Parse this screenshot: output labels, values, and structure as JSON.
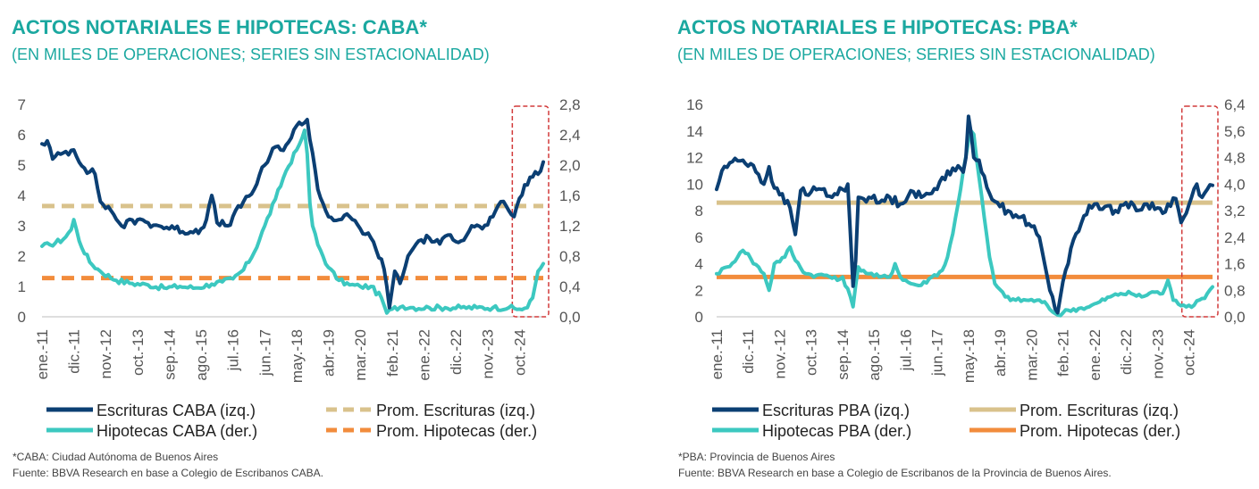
{
  "chart_data": [
    {
      "type": "line",
      "title": "ACTOS NOTARIALES E HIPOTECAS: CABA*",
      "subtitle": "(EN MILES DE OPERACIONES; SERIES SIN ESTACIONALIDAD)",
      "left_axis": {
        "min": 0,
        "max": 7,
        "step": 1,
        "ticks": [
          "0",
          "1",
          "2",
          "3",
          "4",
          "5",
          "6",
          "7"
        ]
      },
      "right_axis": {
        "min": 0,
        "max": 2.8,
        "step": 0.4,
        "ticks": [
          "0,0",
          "0,4",
          "0,8",
          "1,2",
          "1,6",
          "2,0",
          "2,4",
          "2,8"
        ]
      },
      "x_labels": [
        "ene.-11",
        "dic.-11",
        "nov.-12",
        "oct.-13",
        "sep.-14",
        "ago.-15",
        "jul.-16",
        "jun.-17",
        "may.-18",
        "abr.-19",
        "mar.-20",
        "feb.-21",
        "ene.-22",
        "dic.-22",
        "nov.-23",
        "oct.-24"
      ],
      "series": [
        {
          "name": "Escrituras CABA (izq.)",
          "axis": "left",
          "color": "#0B3F73",
          "style": "solid",
          "keyframes": [
            [
              0,
              5.7
            ],
            [
              2,
              5.8
            ],
            [
              4,
              5.2
            ],
            [
              8,
              5.4
            ],
            [
              12,
              5.5
            ],
            [
              16,
              4.9
            ],
            [
              20,
              4.7
            ],
            [
              22,
              3.8
            ],
            [
              26,
              3.5
            ],
            [
              30,
              3.0
            ],
            [
              36,
              3.2
            ],
            [
              40,
              3.1
            ],
            [
              44,
              3.0
            ],
            [
              50,
              2.9
            ],
            [
              56,
              2.8
            ],
            [
              60,
              2.9
            ],
            [
              62,
              3.2
            ],
            [
              64,
              4.0
            ],
            [
              66,
              3.1
            ],
            [
              70,
              3.0
            ],
            [
              76,
              3.8
            ],
            [
              80,
              4.2
            ],
            [
              84,
              5.0
            ],
            [
              88,
              5.6
            ],
            [
              90,
              5.5
            ],
            [
              94,
              5.9
            ],
            [
              96,
              6.3
            ],
            [
              99,
              6.4
            ],
            [
              100,
              6.5
            ],
            [
              102,
              5.4
            ],
            [
              104,
              4.2
            ],
            [
              108,
              3.3
            ],
            [
              112,
              3.2
            ],
            [
              116,
              3.3
            ],
            [
              120,
              2.9
            ],
            [
              124,
              2.6
            ],
            [
              126,
              2.2
            ],
            [
              128,
              1.9
            ],
            [
              130,
              1.0
            ],
            [
              131,
              0.3
            ],
            [
              132,
              0.9
            ],
            [
              133,
              1.5
            ],
            [
              135,
              1.1
            ],
            [
              138,
              2.0
            ],
            [
              142,
              2.5
            ],
            [
              146,
              2.6
            ],
            [
              150,
              2.4
            ],
            [
              154,
              2.7
            ],
            [
              158,
              2.5
            ],
            [
              162,
              3.0
            ],
            [
              166,
              2.9
            ],
            [
              170,
              3.3
            ],
            [
              174,
              3.8
            ],
            [
              176,
              3.5
            ],
            [
              178,
              3.3
            ],
            [
              180,
              3.9
            ],
            [
              184,
              4.6
            ],
            [
              187,
              4.7
            ],
            [
              189,
              5.1
            ]
          ],
          "jitter": 0.13
        },
        {
          "name": "Hipotecas CABA (der.)",
          "axis": "right",
          "color": "#3CC8C0",
          "style": "solid",
          "keyframes": [
            [
              0,
              0.93
            ],
            [
              3,
              0.95
            ],
            [
              8,
              1.02
            ],
            [
              11,
              1.15
            ],
            [
              12,
              1.28
            ],
            [
              14,
              1.0
            ],
            [
              18,
              0.72
            ],
            [
              22,
              0.6
            ],
            [
              28,
              0.48
            ],
            [
              34,
              0.44
            ],
            [
              40,
              0.42
            ],
            [
              46,
              0.38
            ],
            [
              52,
              0.4
            ],
            [
              58,
              0.38
            ],
            [
              64,
              0.43
            ],
            [
              68,
              0.46
            ],
            [
              72,
              0.5
            ],
            [
              76,
              0.62
            ],
            [
              80,
              0.85
            ],
            [
              84,
              1.2
            ],
            [
              88,
              1.55
            ],
            [
              92,
              1.92
            ],
            [
              96,
              2.2
            ],
            [
              98,
              2.35
            ],
            [
              99,
              2.46
            ],
            [
              100,
              2.15
            ],
            [
              101,
              1.5
            ],
            [
              102,
              1.2
            ],
            [
              104,
              0.95
            ],
            [
              108,
              0.65
            ],
            [
              112,
              0.48
            ],
            [
              116,
              0.42
            ],
            [
              120,
              0.4
            ],
            [
              124,
              0.4
            ],
            [
              128,
              0.25
            ],
            [
              130,
              0.05
            ],
            [
              132,
              0.1
            ],
            [
              136,
              0.14
            ],
            [
              140,
              0.12
            ],
            [
              146,
              0.12
            ],
            [
              152,
              0.12
            ],
            [
              158,
              0.12
            ],
            [
              164,
              0.12
            ],
            [
              170,
              0.12
            ],
            [
              176,
              0.12
            ],
            [
              180,
              0.1
            ],
            [
              183,
              0.12
            ],
            [
              185,
              0.25
            ],
            [
              187,
              0.6
            ],
            [
              189,
              0.7
            ]
          ],
          "jitter": 0.035
        },
        {
          "name": "Prom. Escrituras (izq.)",
          "axis": "left",
          "color": "#D9C28C",
          "style": "dashed",
          "value": 3.65
        },
        {
          "name": "Prom. Hipotecas (der.)",
          "axis": "right",
          "color": "#F28C3C",
          "style": "dashed",
          "value": 0.51
        }
      ],
      "footnotes": [
        "*CABA: Ciudad Autónoma de Buenos Aires",
        "Fuente: BBVA Research en base a Colegio de Escribanos CABA."
      ],
      "grid": false,
      "highlight": "dashed red box over the latest year"
    },
    {
      "type": "line",
      "title": "ACTOS NOTARIALES E HIPOTECAS: PBA*",
      "subtitle": "(EN MILES DE OPERACIONES; SERIES SIN ESTACIONALIDAD)",
      "left_axis": {
        "min": 0,
        "max": 16,
        "step": 2,
        "ticks": [
          "0",
          "2",
          "4",
          "6",
          "8",
          "10",
          "12",
          "14",
          "16"
        ]
      },
      "right_axis": {
        "min": 0,
        "max": 6.4,
        "step": 0.8,
        "ticks": [
          "0,0",
          "0,8",
          "1,6",
          "2,4",
          "3,2",
          "4,0",
          "4,8",
          "5,6",
          "6,4"
        ]
      },
      "x_labels": [
        "ene.-11",
        "dic.-11",
        "nov.-12",
        "oct.-13",
        "sep.-14",
        "ago.-15",
        "jul.-16",
        "jun.-17",
        "may.-18",
        "abr.-19",
        "mar.-20",
        "feb.-21",
        "ene.-22",
        "dic.-22",
        "nov.-23",
        "oct.-24"
      ],
      "series": [
        {
          "name": "Escrituras PBA (izq.)",
          "axis": "left",
          "color": "#0B3F73",
          "style": "solid",
          "keyframes": [
            [
              0,
              9.6
            ],
            [
              2,
              11.0
            ],
            [
              5,
              11.6
            ],
            [
              10,
              11.8
            ],
            [
              14,
              11.4
            ],
            [
              18,
              10.0
            ],
            [
              20,
              11.3
            ],
            [
              22,
              9.7
            ],
            [
              24,
              9.2
            ],
            [
              28,
              8.2
            ],
            [
              30,
              6.2
            ],
            [
              32,
              9.5
            ],
            [
              36,
              9.4
            ],
            [
              40,
              9.6
            ],
            [
              44,
              9.0
            ],
            [
              48,
              9.6
            ],
            [
              50,
              10.0
            ],
            [
              52,
              2.3
            ],
            [
              53,
              4.2
            ],
            [
              54,
              9.0
            ],
            [
              58,
              9.0
            ],
            [
              62,
              8.6
            ],
            [
              66,
              9.0
            ],
            [
              70,
              8.5
            ],
            [
              74,
              9.5
            ],
            [
              78,
              9.0
            ],
            [
              82,
              9.3
            ],
            [
              86,
              10.5
            ],
            [
              90,
              11.2
            ],
            [
              94,
              10.9
            ],
            [
              95,
              12.0
            ],
            [
              96,
              15.1
            ],
            [
              98,
              12.0
            ],
            [
              100,
              11.8
            ],
            [
              102,
              10.6
            ],
            [
              104,
              9.3
            ],
            [
              108,
              8.3
            ],
            [
              112,
              7.9
            ],
            [
              116,
              7.5
            ],
            [
              120,
              6.8
            ],
            [
              123,
              6.0
            ],
            [
              125,
              4.0
            ],
            [
              127,
              2.0
            ],
            [
              129,
              0.6
            ],
            [
              130,
              0.3
            ],
            [
              131,
              1.5
            ],
            [
              133,
              3.5
            ],
            [
              136,
              5.8
            ],
            [
              140,
              7.6
            ],
            [
              144,
              8.5
            ],
            [
              148,
              8.3
            ],
            [
              152,
              8.0
            ],
            [
              156,
              8.6
            ],
            [
              160,
              8.0
            ],
            [
              164,
              8.5
            ],
            [
              168,
              8.2
            ],
            [
              170,
              7.8
            ],
            [
              172,
              8.5
            ],
            [
              175,
              8.9
            ],
            [
              177,
              7.1
            ],
            [
              179,
              7.8
            ],
            [
              181,
              9.0
            ],
            [
              183,
              10.0
            ],
            [
              185,
              9.0
            ],
            [
              187,
              9.6
            ],
            [
              189,
              9.9
            ]
          ],
          "jitter": 0.35
        },
        {
          "name": "Hipotecas PBA (der.)",
          "axis": "right",
          "color": "#3CC8C0",
          "style": "solid",
          "keyframes": [
            [
              0,
              1.3
            ],
            [
              4,
              1.5
            ],
            [
              8,
              1.8
            ],
            [
              10,
              2.0
            ],
            [
              12,
              1.9
            ],
            [
              14,
              1.6
            ],
            [
              16,
              1.5
            ],
            [
              18,
              1.3
            ],
            [
              20,
              0.8
            ],
            [
              22,
              1.6
            ],
            [
              26,
              1.8
            ],
            [
              28,
              2.1
            ],
            [
              30,
              1.7
            ],
            [
              34,
              1.3
            ],
            [
              38,
              1.25
            ],
            [
              42,
              1.25
            ],
            [
              46,
              1.1
            ],
            [
              48,
              1.2
            ],
            [
              51,
              0.6
            ],
            [
              52,
              0.3
            ],
            [
              54,
              1.5
            ],
            [
              58,
              1.3
            ],
            [
              62,
              1.2
            ],
            [
              66,
              1.2
            ],
            [
              68,
              1.6
            ],
            [
              70,
              1.2
            ],
            [
              74,
              1.0
            ],
            [
              78,
              0.95
            ],
            [
              82,
              1.2
            ],
            [
              86,
              1.4
            ],
            [
              88,
              1.8
            ],
            [
              90,
              2.5
            ],
            [
              92,
              3.4
            ],
            [
              94,
              4.4
            ],
            [
              96,
              5.3
            ],
            [
              97,
              5.6
            ],
            [
              98,
              5.5
            ],
            [
              100,
              4.2
            ],
            [
              102,
              3.0
            ],
            [
              104,
              1.8
            ],
            [
              106,
              1.0
            ],
            [
              110,
              0.6
            ],
            [
              114,
              0.5
            ],
            [
              118,
              0.5
            ],
            [
              122,
              0.5
            ],
            [
              126,
              0.35
            ],
            [
              128,
              0.15
            ],
            [
              130,
              0.05
            ],
            [
              134,
              0.2
            ],
            [
              138,
              0.25
            ],
            [
              142,
              0.3
            ],
            [
              146,
              0.45
            ],
            [
              150,
              0.6
            ],
            [
              154,
              0.7
            ],
            [
              158,
              0.7
            ],
            [
              162,
              0.6
            ],
            [
              166,
              0.75
            ],
            [
              170,
              0.7
            ],
            [
              172,
              1.1
            ],
            [
              174,
              0.5
            ],
            [
              178,
              0.35
            ],
            [
              182,
              0.35
            ],
            [
              185,
              0.55
            ],
            [
              187,
              0.7
            ],
            [
              189,
              0.9
            ]
          ],
          "jitter": 0.07
        },
        {
          "name": "Prom. Escrituras (izq.)",
          "axis": "left",
          "color": "#D9C28C",
          "style": "solid",
          "value": 8.6
        },
        {
          "name": "Prom. Hipotecas (der.)",
          "axis": "right",
          "color": "#F28C3C",
          "style": "solid",
          "value": 1.2
        }
      ],
      "footnotes": [
        "*PBA: Provincia de Buenos Aires",
        "Fuente: BBVA Research en base a Colegio de Escribanos de la Provincia de Buenos Aires."
      ],
      "grid": false,
      "highlight": "dashed red box over the latest year"
    }
  ]
}
